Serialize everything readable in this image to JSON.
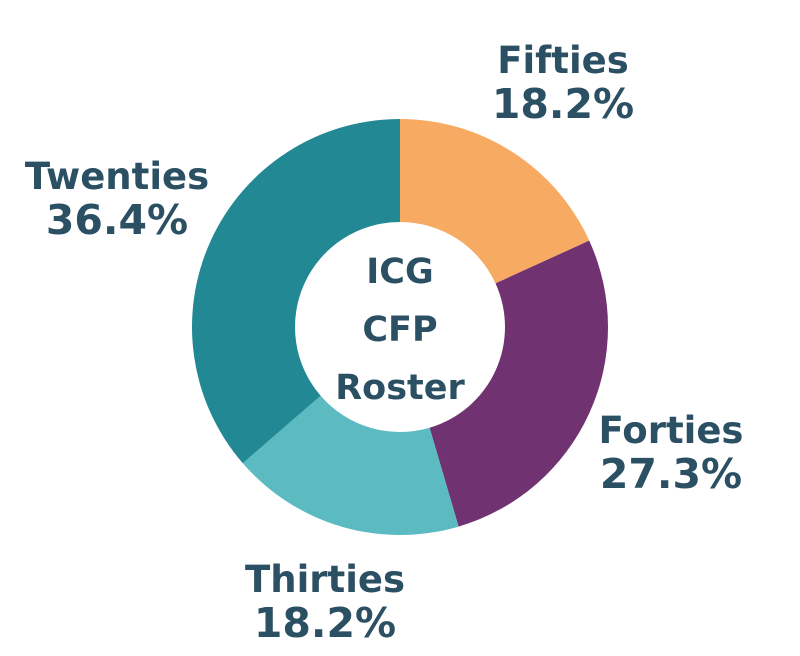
{
  "chart_data": {
    "type": "pie",
    "donut": true,
    "center_label": [
      "ICG",
      "CFP",
      "Roster"
    ],
    "slices": [
      {
        "name": "Fifties",
        "value": 18.2,
        "label": "18.2%",
        "color": "#f7ab62"
      },
      {
        "name": "Forties",
        "value": 27.3,
        "label": "27.3%",
        "color": "#703271"
      },
      {
        "name": "Thirties",
        "value": 18.2,
        "label": "18.2%",
        "color": "#5bbbc1"
      },
      {
        "name": "Twenties",
        "value": 36.4,
        "label": "36.4%",
        "color": "#228893"
      }
    ],
    "title": "",
    "legend": "none"
  }
}
